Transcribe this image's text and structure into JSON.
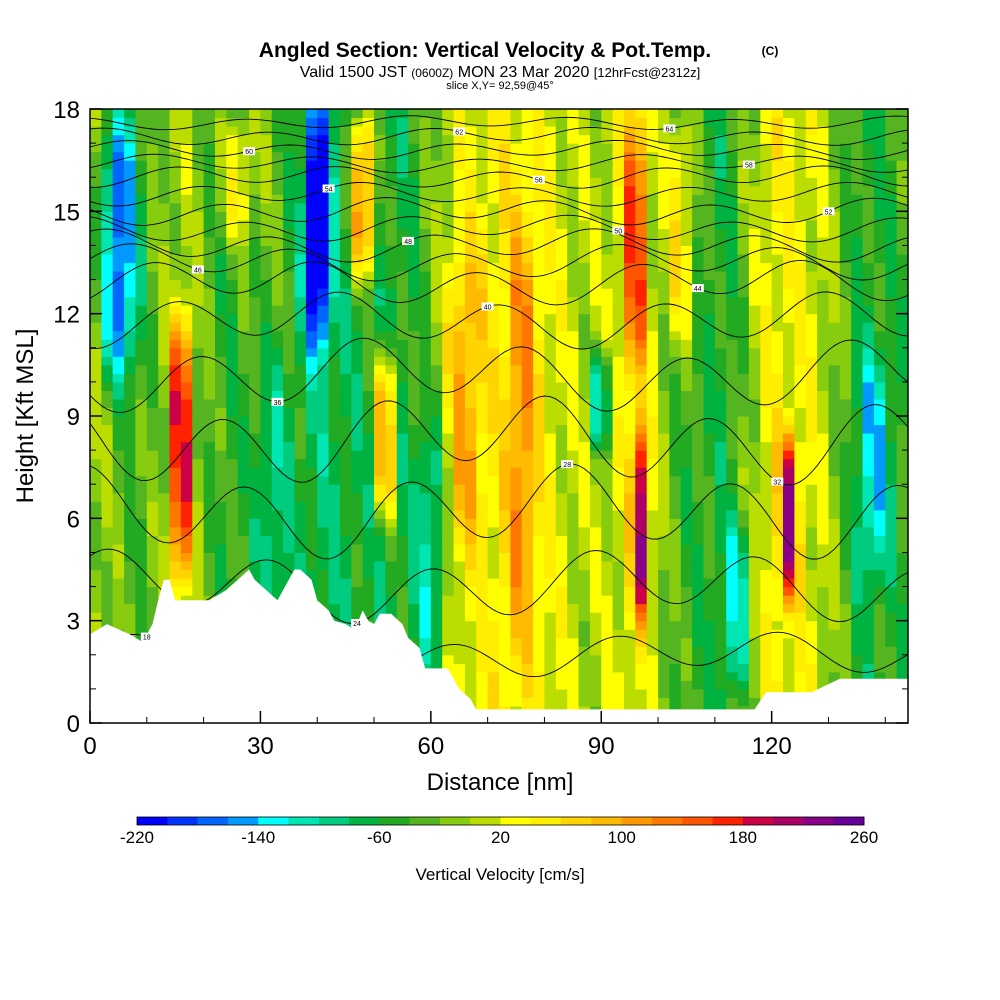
{
  "title": {
    "main": "Angled Section: Vertical Velocity & Pot.Temp.",
    "copyright": "(C)",
    "valid_prefix": "Valid 1500 JST",
    "utc": "(0600Z)",
    "valid_suffix": "MON 23 Mar 2020",
    "forecast": "[12hrFcst@2312z]",
    "slice": "slice X,Y= 92,59@45°"
  },
  "chart_data": {
    "type": "heatmap",
    "xlabel": "Distance [nm]",
    "ylabel": "Height [Kft MSL]",
    "xlim": [
      0,
      144
    ],
    "ylim": [
      0,
      18
    ],
    "x_ticks": [
      0,
      30,
      60,
      90,
      120
    ],
    "y_ticks": [
      0,
      3,
      6,
      9,
      12,
      15,
      18
    ],
    "grid": false,
    "colorbar": {
      "label": "Vertical Velocity [cm/s]",
      "placement": "bottom",
      "range": [
        -220,
        260
      ],
      "step": 20,
      "tick_labels": [
        -220,
        -140,
        -60,
        20,
        100,
        180,
        260
      ],
      "colors": [
        "#0000ff",
        "#0033ff",
        "#0066ff",
        "#0099ff",
        "#00ccff",
        "#00ffff",
        "#00e6b3",
        "#00cc80",
        "#00b340",
        "#22aa22",
        "#55b520",
        "#88cc10",
        "#bbdd00",
        "#ddee00",
        "#ffff00",
        "#ffee00",
        "#ffd400",
        "#ffbb00",
        "#ff9900",
        "#ff7700",
        "#ff5500",
        "#ff2200",
        "#ee0022",
        "#cc0044",
        "#aa0066",
        "#880088",
        "#660099"
      ]
    },
    "cell_size": {
      "dx_nm": 4,
      "dz_kft": 0.5
    },
    "baseline_w": {
      "x": [
        0,
        8,
        16,
        24,
        32,
        40,
        48,
        56,
        64,
        72,
        80,
        88,
        96,
        104,
        112,
        120,
        128,
        136,
        144
      ],
      "w": [
        5,
        -40,
        5,
        -50,
        -20,
        -80,
        -60,
        -60,
        20,
        40,
        30,
        0,
        30,
        -40,
        -60,
        40,
        20,
        -60,
        -40
      ]
    },
    "jets": [
      {
        "x": 5,
        "z": [
          10,
          18
        ],
        "w": -160,
        "sx": 3
      },
      {
        "x": 40,
        "z": [
          11,
          18
        ],
        "w": -200,
        "sx": 2
      },
      {
        "x": 90,
        "z": [
          8,
          11
        ],
        "w": -140,
        "sx": 1.5
      },
      {
        "x": 16,
        "z": [
          4,
          12
        ],
        "w": 240,
        "sx": 1.6
      },
      {
        "x": 52,
        "z": [
          6,
          11
        ],
        "w": 200,
        "sx": 1.5
      },
      {
        "x": 48,
        "z": [
          13,
          18
        ],
        "w": 190,
        "sx": 2
      },
      {
        "x": 97,
        "z": [
          3,
          9
        ],
        "w": 200,
        "sx": 1.5
      },
      {
        "x": 96,
        "z": [
          10,
          18
        ],
        "w": 160,
        "sx": 1.8
      },
      {
        "x": 123,
        "z": [
          3.5,
          8.5
        ],
        "w": 180,
        "sx": 1.5
      },
      {
        "x": 76,
        "z": [
          2,
          15
        ],
        "w": 90,
        "sx": 2.5
      },
      {
        "x": 66,
        "z": [
          5,
          14
        ],
        "w": 80,
        "sx": 3
      },
      {
        "x": 26,
        "z": [
          14,
          18
        ],
        "w": 80,
        "sx": 3
      },
      {
        "x": 104,
        "z": [
          11,
          18
        ],
        "w": 90,
        "sx": 2.5
      },
      {
        "x": 114,
        "z": [
          1,
          6
        ],
        "w": -90,
        "sx": 2
      },
      {
        "x": 138,
        "z": [
          4,
          11
        ],
        "w": -80,
        "sx": 3
      },
      {
        "x": 60,
        "z": [
          1,
          9
        ],
        "w": -90,
        "sx": 2.5
      },
      {
        "x": 32,
        "z": [
          2,
          11
        ],
        "w": -70,
        "sx": 3
      }
    ],
    "terrain": {
      "x": [
        0,
        3,
        7,
        9,
        10,
        11,
        12,
        13,
        14,
        15,
        18,
        21,
        24,
        26,
        28,
        29,
        31,
        33,
        35,
        36,
        37,
        39,
        40,
        42,
        43,
        45,
        46,
        47,
        48,
        49,
        50,
        51,
        53,
        55,
        56,
        58,
        59,
        60,
        63,
        64,
        65,
        67,
        68,
        70,
        75,
        80,
        85,
        90,
        95,
        100,
        105,
        109,
        112,
        116,
        117,
        119,
        127,
        132,
        138,
        144
      ],
      "z": [
        2.6,
        2.9,
        2.6,
        2.4,
        2.6,
        2.9,
        3.6,
        4.2,
        4.2,
        3.6,
        3.6,
        3.6,
        3.9,
        4.2,
        4.5,
        4.2,
        3.9,
        3.6,
        4.2,
        4.5,
        4.5,
        4.2,
        3.6,
        3.3,
        3.0,
        2.9,
        2.8,
        2.9,
        3.3,
        3.0,
        2.9,
        3.2,
        3.2,
        2.9,
        2.5,
        2.2,
        1.6,
        1.6,
        1.6,
        1.3,
        1.0,
        0.7,
        0.4,
        0.4,
        0.4,
        0.4,
        0.4,
        0.4,
        0.4,
        0.4,
        0.4,
        0.4,
        0.4,
        0.4,
        0.4,
        0.9,
        0.9,
        1.3,
        1.3,
        1.3
      ]
    },
    "theta_contours": [
      {
        "z0": 2.0,
        "amp": 0.5,
        "label": "18"
      },
      {
        "z0": 4.0,
        "amp": 0.8,
        "label": "24"
      },
      {
        "z0": 6.2,
        "amp": 1.0,
        "label": "28"
      },
      {
        "z0": 8.3,
        "amp": 1.0,
        "label": "32"
      },
      {
        "z0": 10.2,
        "amp": 0.8,
        "label": "36"
      },
      {
        "z0": 11.8,
        "amp": 0.6,
        "label": "40"
      },
      {
        "z0": 12.9,
        "amp": 0.5,
        "label": "44"
      },
      {
        "z0": 13.5,
        "amp": 0.4,
        "label": "46"
      },
      {
        "z0": 14.0,
        "amp": 0.35,
        "label": "48"
      },
      {
        "z0": 14.5,
        "amp": 0.3,
        "label": "50"
      },
      {
        "z0": 15.0,
        "amp": 0.3,
        "label": "52"
      },
      {
        "z0": 15.5,
        "amp": 0.25,
        "label": "54"
      },
      {
        "z0": 16.0,
        "amp": 0.25,
        "label": "56"
      },
      {
        "z0": 16.4,
        "amp": 0.2,
        "label": "58"
      },
      {
        "z0": 16.8,
        "amp": 0.2,
        "label": "60"
      },
      {
        "z0": 17.2,
        "amp": 0.2,
        "label": "62"
      },
      {
        "z0": 17.6,
        "amp": 0.15,
        "label": "64"
      }
    ]
  }
}
